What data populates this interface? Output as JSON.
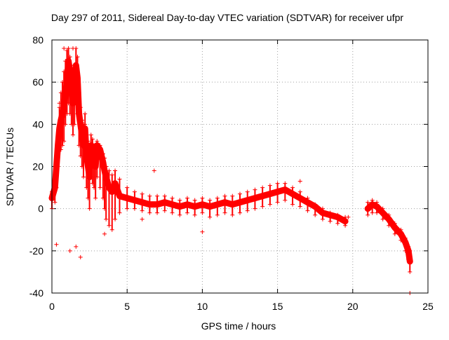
{
  "chart_data": {
    "type": "scatter",
    "title": "Day 297 of 2011, Sidereal Day-to-day VTEC variation (SDTVAR) for receiver ufpr",
    "xlabel": "GPS time / hours",
    "ylabel": "SDTVAR / TECUs",
    "xlim": [
      0,
      25
    ],
    "ylim": [
      -40,
      80
    ],
    "xticks": [
      0,
      5,
      10,
      15,
      20,
      25
    ],
    "yticks": [
      -40,
      -20,
      0,
      20,
      40,
      60,
      80
    ],
    "grid": true,
    "marker": "+",
    "color": "#ff0000",
    "series": [
      {
        "name": "SDTVAR",
        "x": [
          0.0,
          0.2,
          0.3,
          0.4,
          0.5,
          0.6,
          0.7,
          0.8,
          0.9,
          1.0,
          1.1,
          1.2,
          1.3,
          1.4,
          1.5,
          1.6,
          1.7,
          1.8,
          1.9,
          2.0,
          2.1,
          2.2,
          2.3,
          2.4,
          2.5,
          2.6,
          2.7,
          2.8,
          2.9,
          3.0,
          3.2,
          3.4,
          3.5,
          3.6,
          3.8,
          4.0,
          4.2,
          4.5,
          5.0,
          5.5,
          6.0,
          6.5,
          7.0,
          7.5,
          8.0,
          8.5,
          9.0,
          9.5,
          10.0,
          10.5,
          11.0,
          11.5,
          12.0,
          12.5,
          13.0,
          13.5,
          14.0,
          14.5,
          15.0,
          15.5,
          16.0,
          16.5,
          17.0,
          17.5,
          18.0,
          18.5,
          19.0,
          19.5,
          21.0,
          21.3,
          21.6,
          22.0,
          22.4,
          22.8,
          23.2,
          23.5,
          23.7,
          23.8
        ],
        "y": [
          5,
          10,
          20,
          30,
          38,
          42,
          45,
          48,
          55,
          60,
          70,
          65,
          58,
          50,
          60,
          68,
          62,
          45,
          40,
          35,
          30,
          38,
          25,
          20,
          15,
          30,
          28,
          25,
          20,
          30,
          28,
          22,
          18,
          15,
          10,
          8,
          12,
          6,
          5,
          4,
          3,
          2,
          2,
          3,
          2,
          1,
          2,
          1,
          2,
          1,
          2,
          3,
          2,
          3,
          4,
          5,
          6,
          7,
          8,
          9,
          7,
          5,
          3,
          1,
          -2,
          -3,
          -4,
          -6,
          0,
          2,
          1,
          -2,
          -5,
          -9,
          -12,
          -16,
          -20,
          -25
        ],
        "band_upper": [
          8,
          14,
          24,
          35,
          48,
          55,
          60,
          65,
          70,
          75,
          76,
          72,
          68,
          62,
          68,
          76,
          72,
          55,
          48,
          42,
          40,
          45,
          35,
          32,
          30,
          35,
          33,
          30,
          28,
          32,
          30,
          26,
          24,
          20,
          18,
          16,
          18,
          14,
          10,
          8,
          7,
          6,
          6,
          6,
          5,
          4,
          5,
          4,
          5,
          4,
          5,
          6,
          6,
          7,
          8,
          9,
          10,
          11,
          12,
          12,
          10,
          8,
          5,
          2,
          0,
          -2,
          -3,
          -4,
          3,
          4,
          3,
          0,
          -3,
          -7,
          -10,
          -14,
          -18,
          -20
        ],
        "band_lower": [
          0,
          3,
          10,
          20,
          28,
          28,
          30,
          32,
          40,
          45,
          50,
          45,
          40,
          35,
          40,
          50,
          45,
          30,
          25,
          20,
          15,
          25,
          10,
          5,
          0,
          15,
          12,
          10,
          5,
          15,
          10,
          5,
          0,
          -5,
          -8,
          -10,
          -5,
          -2,
          0,
          0,
          -1,
          -2,
          -2,
          -1,
          -2,
          -3,
          -2,
          -3,
          -2,
          -4,
          -3,
          -2,
          -3,
          -2,
          -1,
          0,
          1,
          2,
          3,
          4,
          2,
          1,
          -1,
          -3,
          -5,
          -6,
          -7,
          -8,
          -3,
          -2,
          -2,
          -5,
          -8,
          -12,
          -15,
          -20,
          -24,
          -30
        ]
      }
    ],
    "outliers": [
      {
        "x": 0.8,
        "y": 76
      },
      {
        "x": 1.4,
        "y": 76
      },
      {
        "x": 1.2,
        "y": -20
      },
      {
        "x": 1.9,
        "y": -23
      },
      {
        "x": 1.6,
        "y": -18
      },
      {
        "x": 0.3,
        "y": -17
      },
      {
        "x": 10.0,
        "y": -11
      },
      {
        "x": 6.0,
        "y": -5
      },
      {
        "x": 16.5,
        "y": 13
      },
      {
        "x": 6.8,
        "y": 18
      },
      {
        "x": 23.8,
        "y": -40
      },
      {
        "x": 19.7,
        "y": -4
      },
      {
        "x": 3.5,
        "y": -12
      },
      {
        "x": 2.2,
        "y": 40
      },
      {
        "x": 0.5,
        "y": 50
      }
    ]
  }
}
